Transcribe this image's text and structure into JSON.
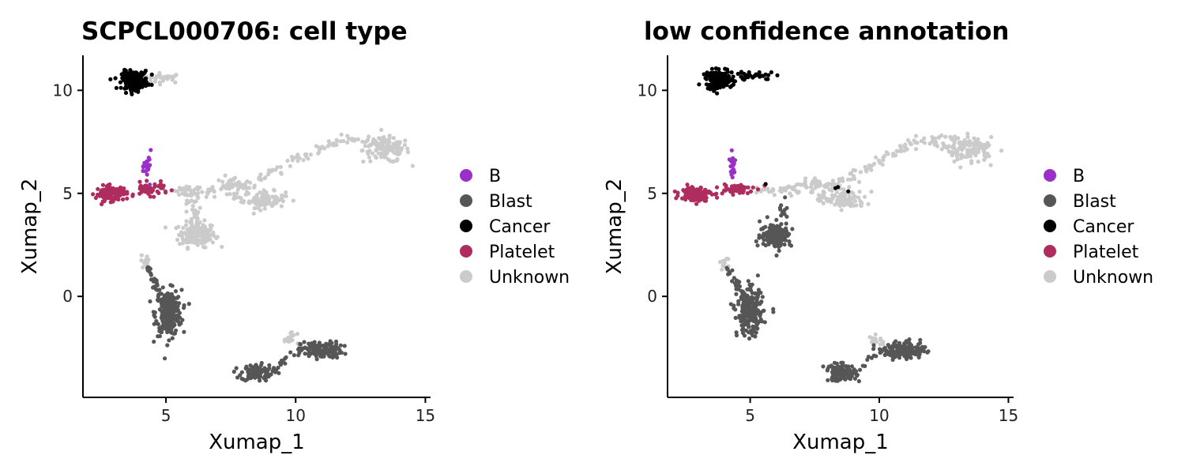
{
  "chart_data": [
    {
      "type": "scatter",
      "title": "SCPCL000706: cell type",
      "xlabel": "Xumap_1",
      "ylabel": "Xumap_2",
      "xlim": [
        1.8,
        15.2
      ],
      "ylim": [
        -4.9,
        11.7
      ],
      "xticks": [
        5,
        10,
        15
      ],
      "yticks": [
        0,
        5,
        10
      ],
      "legend_placement": "right",
      "grid": false,
      "legend": [
        {
          "label": "B",
          "color": "#9b30c8"
        },
        {
          "label": "Blast",
          "color": "#565656"
        },
        {
          "label": "Cancer",
          "color": "#000000"
        },
        {
          "label": "Platelet",
          "color": "#ae2d5e"
        },
        {
          "label": "Unknown",
          "color": "#cbcbcb"
        }
      ],
      "clusters": [
        {
          "category": "Unknown",
          "cx": 4.9,
          "cy": 10.6,
          "sx": 0.4,
          "sy": 0.12,
          "n": 30
        },
        {
          "category": "Unknown",
          "cx": 6.2,
          "cy": 3.0,
          "sx": 0.35,
          "sy": 0.3,
          "n": 170
        },
        {
          "category": "Unknown",
          "cx": 8.8,
          "cy": 4.7,
          "sx": 0.4,
          "sy": 0.2,
          "n": 90
        },
        {
          "category": "Unknown",
          "cx": 13.5,
          "cy": 7.1,
          "sx": 0.45,
          "sy": 0.3,
          "n": 110
        },
        {
          "category": "Unknown",
          "cx": 4.2,
          "cy": 1.7,
          "sx": 0.1,
          "sy": 0.2,
          "n": 12
        },
        {
          "category": "Unknown",
          "cx": 9.9,
          "cy": -2.05,
          "sx": 0.12,
          "sy": 0.15,
          "n": 8
        },
        {
          "category": "Blast",
          "cx": 5.1,
          "cy": -0.8,
          "sx": 0.25,
          "sy": 0.55,
          "n": 240
        },
        {
          "category": "Blast",
          "cx": 8.5,
          "cy": -3.7,
          "sx": 0.3,
          "sy": 0.2,
          "n": 110
        },
        {
          "category": "Blast",
          "cx": 11.0,
          "cy": -2.6,
          "sx": 0.4,
          "sy": 0.2,
          "n": 150
        },
        {
          "category": "Cancer",
          "cx": 3.8,
          "cy": 10.5,
          "sx": 0.25,
          "sy": 0.22,
          "n": 180
        },
        {
          "category": "Platelet",
          "cx": 2.9,
          "cy": 5.0,
          "sx": 0.3,
          "sy": 0.18,
          "n": 120
        },
        {
          "category": "Platelet",
          "cx": 4.4,
          "cy": 5.2,
          "sx": 0.35,
          "sy": 0.15,
          "n": 45
        },
        {
          "category": "B",
          "cx": 4.3,
          "cy": 6.3,
          "sx": 0.07,
          "sy": 0.35,
          "n": 22
        }
      ],
      "paths": [
        {
          "category": "Unknown",
          "points": [
            [
              5.3,
              5.15
            ],
            [
              6.0,
              5.05
            ],
            [
              6.8,
              5.15
            ],
            [
              7.4,
              5.6
            ],
            [
              8.0,
              5.3
            ],
            [
              9.0,
              5.9
            ],
            [
              10.0,
              6.6
            ],
            [
              11.0,
              7.2
            ],
            [
              12.0,
              7.6
            ],
            [
              13.0,
              7.5
            ],
            [
              14.0,
              7.2
            ]
          ],
          "n": 180,
          "spread": 0.22
        },
        {
          "category": "Unknown",
          "points": [
            [
              6.0,
              5.0
            ],
            [
              6.0,
              4.3
            ],
            [
              6.1,
              3.6
            ]
          ],
          "n": 30,
          "spread": 0.2
        },
        {
          "category": "Unknown",
          "points": [
            [
              7.4,
              5.4
            ],
            [
              7.6,
              5.0
            ],
            [
              7.8,
              4.6
            ]
          ],
          "n": 20,
          "spread": 0.18
        },
        {
          "category": "Unknown",
          "points": [
            [
              9.6,
              -2.0
            ],
            [
              10.2,
              -2.3
            ]
          ],
          "n": 10,
          "spread": 0.1
        },
        {
          "category": "Blast",
          "points": [
            [
              4.3,
              1.4
            ],
            [
              4.6,
              0.6
            ],
            [
              5.0,
              -0.3
            ]
          ],
          "n": 30,
          "spread": 0.12
        },
        {
          "category": "Blast",
          "points": [
            [
              9.2,
              -3.6
            ],
            [
              9.6,
              -3.0
            ],
            [
              10.3,
              -2.6
            ]
          ],
          "n": 16,
          "spread": 0.12
        }
      ]
    },
    {
      "type": "scatter",
      "title": "low confidence annotation",
      "xlabel": "Xumap_1",
      "ylabel": "Xumap_2",
      "xlim": [
        1.8,
        15.2
      ],
      "ylim": [
        -4.9,
        11.7
      ],
      "xticks": [
        5,
        10,
        15
      ],
      "yticks": [
        0,
        5,
        10
      ],
      "legend_placement": "right",
      "grid": false,
      "legend": [
        {
          "label": "B",
          "color": "#9b30c8"
        },
        {
          "label": "Blast",
          "color": "#565656"
        },
        {
          "label": "Cancer",
          "color": "#000000"
        },
        {
          "label": "Platelet",
          "color": "#ae2d5e"
        },
        {
          "label": "Unknown",
          "color": "#cbcbcb"
        }
      ],
      "clusters": [
        {
          "category": "Cancer",
          "cx": 5.1,
          "cy": 10.7,
          "sx": 0.45,
          "sy": 0.1,
          "n": 40
        },
        {
          "category": "Blast",
          "cx": 6.0,
          "cy": 3.0,
          "sx": 0.3,
          "sy": 0.3,
          "n": 150
        },
        {
          "category": "Unknown",
          "cx": 8.7,
          "cy": 4.7,
          "sx": 0.4,
          "sy": 0.22,
          "n": 90
        },
        {
          "category": "Unknown",
          "cx": 13.5,
          "cy": 7.1,
          "sx": 0.45,
          "sy": 0.3,
          "n": 110
        },
        {
          "category": "Unknown",
          "cx": 4.0,
          "cy": 1.7,
          "sx": 0.1,
          "sy": 0.2,
          "n": 12
        },
        {
          "category": "Unknown",
          "cx": 9.8,
          "cy": -2.1,
          "sx": 0.12,
          "sy": 0.15,
          "n": 8
        },
        {
          "category": "Blast",
          "cx": 5.0,
          "cy": -0.8,
          "sx": 0.25,
          "sy": 0.55,
          "n": 240
        },
        {
          "category": "Blast",
          "cx": 8.5,
          "cy": -3.7,
          "sx": 0.3,
          "sy": 0.2,
          "n": 110
        },
        {
          "category": "Blast",
          "cx": 11.0,
          "cy": -2.6,
          "sx": 0.4,
          "sy": 0.2,
          "n": 150
        },
        {
          "category": "Cancer",
          "cx": 3.8,
          "cy": 10.5,
          "sx": 0.25,
          "sy": 0.22,
          "n": 180
        },
        {
          "category": "Platelet",
          "cx": 2.9,
          "cy": 5.0,
          "sx": 0.3,
          "sy": 0.18,
          "n": 120
        },
        {
          "category": "Platelet",
          "cx": 4.4,
          "cy": 5.2,
          "sx": 0.35,
          "sy": 0.15,
          "n": 45
        },
        {
          "category": "B",
          "cx": 4.3,
          "cy": 6.3,
          "sx": 0.07,
          "sy": 0.35,
          "n": 22
        }
      ],
      "paths": [
        {
          "category": "Unknown",
          "points": [
            [
              5.3,
              5.15
            ],
            [
              6.0,
              5.05
            ],
            [
              6.8,
              5.15
            ],
            [
              7.4,
              5.6
            ],
            [
              8.0,
              5.3
            ],
            [
              9.0,
              5.9
            ],
            [
              10.0,
              6.6
            ],
            [
              11.0,
              7.2
            ],
            [
              12.0,
              7.6
            ],
            [
              13.0,
              7.5
            ],
            [
              14.0,
              7.2
            ]
          ],
          "n": 180,
          "spread": 0.22
        },
        {
          "category": "Unknown",
          "points": [
            [
              7.4,
              5.4
            ],
            [
              7.6,
              5.0
            ],
            [
              7.8,
              4.6
            ]
          ],
          "n": 20,
          "spread": 0.18
        },
        {
          "category": "Unknown",
          "points": [
            [
              9.6,
              -2.0
            ],
            [
              10.2,
              -2.3
            ]
          ],
          "n": 10,
          "spread": 0.1
        },
        {
          "category": "Blast",
          "points": [
            [
              6.4,
              4.6
            ],
            [
              6.2,
              3.9
            ]
          ],
          "n": 12,
          "spread": 0.2
        },
        {
          "category": "Blast",
          "points": [
            [
              4.1,
              1.4
            ],
            [
              4.5,
              0.6
            ],
            [
              4.9,
              -0.3
            ]
          ],
          "n": 30,
          "spread": 0.12
        },
        {
          "category": "Blast",
          "points": [
            [
              9.2,
              -3.6
            ],
            [
              9.6,
              -3.0
            ],
            [
              10.3,
              -2.6
            ]
          ],
          "n": 16,
          "spread": 0.12
        }
      ],
      "points": [
        {
          "category": "Cancer",
          "x": 5.6,
          "y": 5.45
        },
        {
          "category": "Cancer",
          "x": 8.4,
          "y": 5.3
        },
        {
          "category": "Cancer",
          "x": 8.8,
          "y": 5.1
        },
        {
          "category": "Cancer",
          "x": 8.3,
          "y": 5.25
        }
      ]
    }
  ]
}
